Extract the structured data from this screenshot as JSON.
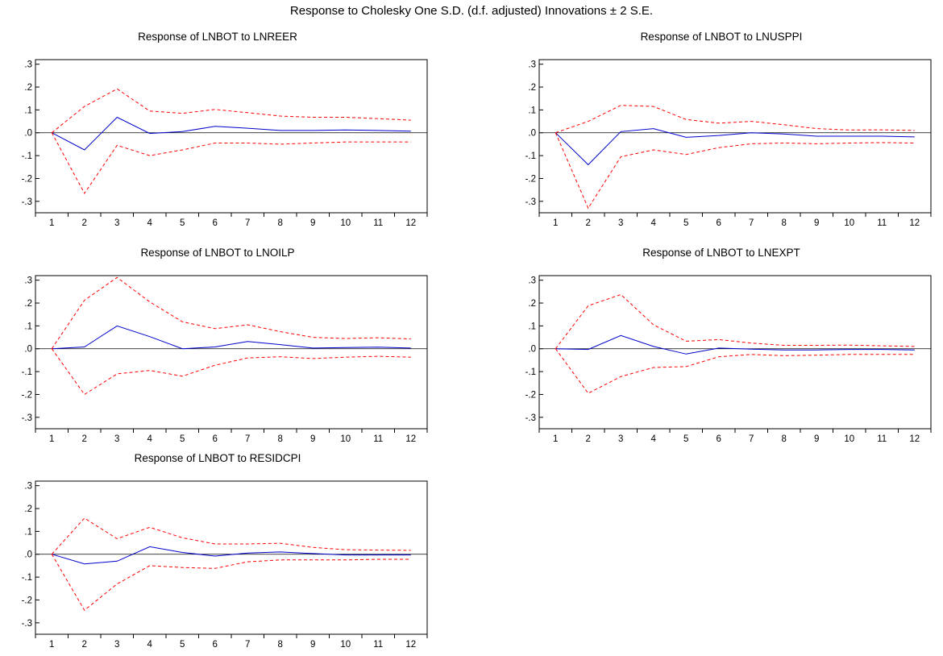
{
  "figure": {
    "title": "Response to Cholesky One S.D. (d.f. adjusted) Innovations ± 2 S.E."
  },
  "styles": {
    "response_color": "#0000cc",
    "band_color": "#ff0000",
    "zero_line_color": "#000000",
    "frame_color": "#000000"
  },
  "chart_data": [
    {
      "type": "line",
      "title": "Response of LNBOT to LNREER",
      "x": [
        1,
        2,
        3,
        4,
        5,
        6,
        7,
        8,
        9,
        10,
        11,
        12
      ],
      "ylim": [
        -0.35,
        0.32
      ],
      "yticks": [
        0.3,
        0.2,
        0.1,
        0.0,
        -0.1,
        -0.2,
        -0.3
      ],
      "ytick_labels": [
        ".3",
        ".2",
        ".1",
        ".0",
        "-.1",
        "-.2",
        "-.3"
      ],
      "series": [
        {
          "role": "response",
          "values": [
            0.0,
            -0.075,
            0.068,
            -0.003,
            0.005,
            0.028,
            0.02,
            0.01,
            0.01,
            0.012,
            0.01,
            0.007
          ]
        },
        {
          "role": "upper",
          "values": [
            0.0,
            0.115,
            0.192,
            0.095,
            0.085,
            0.102,
            0.088,
            0.073,
            0.068,
            0.068,
            0.062,
            0.055
          ]
        },
        {
          "role": "lower",
          "values": [
            0.0,
            -0.265,
            -0.055,
            -0.1,
            -0.075,
            -0.045,
            -0.045,
            -0.05,
            -0.045,
            -0.04,
            -0.04,
            -0.04
          ]
        }
      ]
    },
    {
      "type": "line",
      "title": "Response of LNBOT to LNUSPPI",
      "x": [
        1,
        2,
        3,
        4,
        5,
        6,
        7,
        8,
        9,
        10,
        11,
        12
      ],
      "ylim": [
        -0.35,
        0.32
      ],
      "yticks": [
        0.3,
        0.2,
        0.1,
        0.0,
        -0.1,
        -0.2,
        -0.3
      ],
      "ytick_labels": [
        ".3",
        ".2",
        ".1",
        ".0",
        "-.1",
        "-.2",
        "-.3"
      ],
      "series": [
        {
          "role": "response",
          "values": [
            0.0,
            -0.14,
            0.005,
            0.018,
            -0.02,
            -0.012,
            0.0,
            -0.005,
            -0.015,
            -0.015,
            -0.015,
            -0.018
          ]
        },
        {
          "role": "upper",
          "values": [
            0.0,
            0.05,
            0.12,
            0.115,
            0.058,
            0.042,
            0.05,
            0.035,
            0.018,
            0.012,
            0.013,
            0.01
          ]
        },
        {
          "role": "lower",
          "values": [
            0.0,
            -0.33,
            -0.105,
            -0.075,
            -0.095,
            -0.065,
            -0.048,
            -0.045,
            -0.048,
            -0.045,
            -0.043,
            -0.045
          ]
        }
      ]
    },
    {
      "type": "line",
      "title": "Response of LNBOT to LNOILP",
      "x": [
        1,
        2,
        3,
        4,
        5,
        6,
        7,
        8,
        9,
        10,
        11,
        12
      ],
      "ylim": [
        -0.35,
        0.32
      ],
      "yticks": [
        0.3,
        0.2,
        0.1,
        0.0,
        -0.1,
        -0.2,
        -0.3
      ],
      "ytick_labels": [
        ".3",
        ".2",
        ".1",
        ".0",
        "-.1",
        "-.2",
        "-.3"
      ],
      "series": [
        {
          "role": "response",
          "values": [
            0.0,
            0.008,
            0.1,
            0.053,
            0.0,
            0.008,
            0.032,
            0.018,
            0.003,
            0.005,
            0.007,
            0.003
          ]
        },
        {
          "role": "upper",
          "values": [
            0.0,
            0.212,
            0.312,
            0.205,
            0.118,
            0.088,
            0.105,
            0.075,
            0.05,
            0.045,
            0.048,
            0.043
          ]
        },
        {
          "role": "lower",
          "values": [
            0.0,
            -0.2,
            -0.11,
            -0.095,
            -0.12,
            -0.072,
            -0.04,
            -0.035,
            -0.043,
            -0.037,
            -0.033,
            -0.037
          ]
        }
      ]
    },
    {
      "type": "line",
      "title": "Response of LNBOT to LNEXPT",
      "x": [
        1,
        2,
        3,
        4,
        5,
        6,
        7,
        8,
        9,
        10,
        11,
        12
      ],
      "ylim": [
        -0.35,
        0.32
      ],
      "yticks": [
        0.3,
        0.2,
        0.1,
        0.0,
        -0.1,
        -0.2,
        -0.3
      ],
      "ytick_labels": [
        ".3",
        ".2",
        ".1",
        ".0",
        "-.1",
        "-.2",
        "-.3"
      ],
      "series": [
        {
          "role": "response",
          "values": [
            0.0,
            -0.003,
            0.058,
            0.01,
            -0.023,
            0.003,
            -0.002,
            -0.005,
            -0.005,
            -0.003,
            -0.003,
            -0.005
          ]
        },
        {
          "role": "upper",
          "values": [
            0.0,
            0.188,
            0.237,
            0.105,
            0.033,
            0.04,
            0.025,
            0.015,
            0.015,
            0.016,
            0.013,
            0.01
          ]
        },
        {
          "role": "lower",
          "values": [
            0.0,
            -0.195,
            -0.122,
            -0.082,
            -0.078,
            -0.035,
            -0.025,
            -0.03,
            -0.028,
            -0.025,
            -0.025,
            -0.025
          ]
        }
      ]
    },
    {
      "type": "line",
      "title": "Response of LNBOT to RESIDCPI",
      "x": [
        1,
        2,
        3,
        4,
        5,
        6,
        7,
        8,
        9,
        10,
        11,
        12
      ],
      "ylim": [
        -0.35,
        0.32
      ],
      "yticks": [
        0.3,
        0.2,
        0.1,
        0.0,
        -0.1,
        -0.2,
        -0.3
      ],
      "ytick_labels": [
        ".3",
        ".2",
        ".1",
        ".0",
        "-.1",
        "-.2",
        "-.3"
      ],
      "series": [
        {
          "role": "response",
          "values": [
            0.0,
            -0.042,
            -0.03,
            0.033,
            0.008,
            -0.008,
            0.005,
            0.01,
            0.003,
            -0.003,
            -0.003,
            -0.003
          ]
        },
        {
          "role": "upper",
          "values": [
            0.0,
            0.158,
            0.068,
            0.118,
            0.072,
            0.045,
            0.045,
            0.048,
            0.03,
            0.02,
            0.018,
            0.017
          ]
        },
        {
          "role": "lower",
          "values": [
            0.0,
            -0.245,
            -0.13,
            -0.05,
            -0.058,
            -0.062,
            -0.033,
            -0.025,
            -0.025,
            -0.025,
            -0.022,
            -0.022
          ]
        }
      ]
    }
  ]
}
